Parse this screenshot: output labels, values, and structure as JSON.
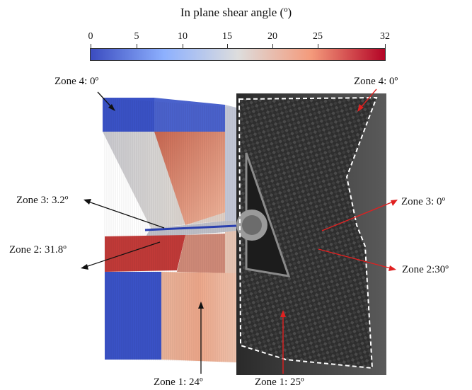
{
  "colorbar": {
    "title": "In plane shear angle (º)",
    "ticks": [
      "0",
      "5",
      "10",
      "15",
      "20",
      "25",
      "32"
    ],
    "tick_values": [
      0,
      5,
      10,
      15,
      20,
      25,
      32
    ],
    "range": [
      0,
      32
    ],
    "colors": [
      "#3b4cc0",
      "#8db0fe",
      "#dddddd",
      "#f49a7b",
      "#b40426"
    ]
  },
  "labels": {
    "sim_zone4": "Zone 4: 0º",
    "sim_zone3": "Zone 3: 3.2º",
    "sim_zone2": "Zone 2: 31.8º",
    "sim_zone1": "Zone 1: 24º",
    "exp_zone4": "Zone 4: 0º",
    "exp_zone3": "Zone 3: 0º",
    "exp_zone2": "Zone 2:30º",
    "exp_zone1": "Zone 1: 25º"
  },
  "colors": {
    "arrow_black": "#111111",
    "arrow_red": "#e02020",
    "dashed_outline": "#ffffff"
  }
}
